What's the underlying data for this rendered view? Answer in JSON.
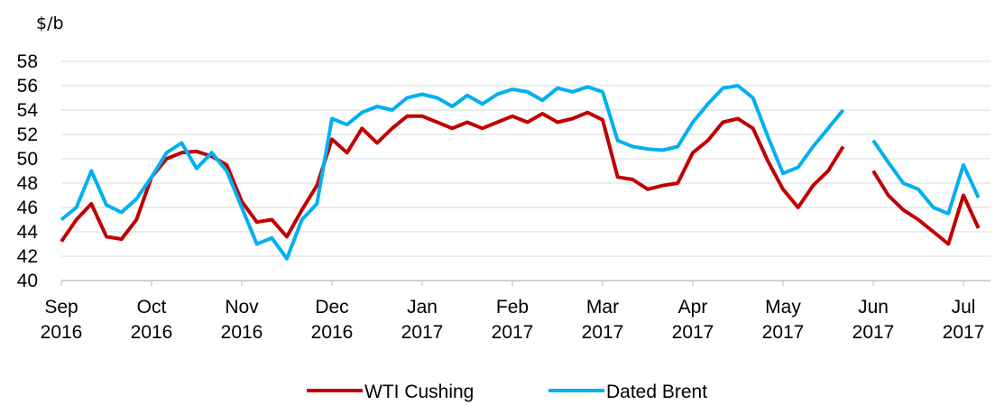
{
  "chart_data": {
    "type": "line",
    "y_axis_label": "$/b",
    "categories": [
      "Sep 2016",
      null,
      null,
      null,
      null,
      null,
      "Oct 2016",
      null,
      null,
      null,
      null,
      null,
      "Nov 2016",
      null,
      null,
      null,
      null,
      null,
      "Dec 2016",
      null,
      null,
      null,
      null,
      null,
      "Jan 2017",
      null,
      null,
      null,
      null,
      null,
      "Feb 2017",
      null,
      null,
      null,
      null,
      null,
      "Mar 2017",
      null,
      null,
      null,
      null,
      null,
      "Apr 2017",
      null,
      null,
      null,
      null,
      null,
      "May 2017",
      null,
      null,
      null,
      null,
      null,
      "Jun 2017",
      null,
      null,
      null,
      null,
      null,
      "Jul 2017",
      null
    ],
    "series": [
      {
        "name": "WTI Cushing",
        "color": "#c00000",
        "values": [
          43.2,
          45.0,
          46.3,
          43.6,
          43.4,
          45.0,
          48.5,
          50.0,
          50.5,
          50.6,
          50.2,
          49.5,
          46.5,
          44.8,
          45.0,
          43.6,
          45.8,
          47.8,
          51.6,
          50.5,
          52.5,
          51.3,
          52.5,
          53.5,
          53.5,
          53.0,
          52.5,
          53.0,
          52.5,
          53.0,
          53.5,
          53.0,
          53.7,
          53.0,
          53.3,
          53.8,
          53.2,
          48.5,
          48.3,
          47.5,
          47.8,
          48.0,
          50.5,
          51.5,
          53.0,
          53.3,
          52.5,
          49.8,
          47.5,
          46.0,
          47.8,
          49.0,
          51.0,
          null,
          49.0,
          47.0,
          45.8,
          45.0,
          44.0,
          43.0,
          47.0,
          44.3
        ]
      },
      {
        "name": "Dated Brent",
        "color": "#00b0f0",
        "values": [
          45.0,
          46.0,
          49.0,
          46.2,
          45.6,
          46.7,
          48.5,
          50.5,
          51.3,
          49.2,
          50.5,
          49.0,
          46.0,
          43.0,
          43.5,
          41.8,
          45.0,
          46.3,
          53.3,
          52.8,
          53.8,
          54.3,
          54.0,
          55.0,
          55.3,
          55.0,
          54.3,
          55.2,
          54.5,
          55.3,
          55.7,
          55.5,
          54.8,
          55.8,
          55.5,
          55.9,
          55.5,
          51.5,
          51.0,
          50.8,
          50.7,
          51.0,
          53.0,
          54.5,
          55.8,
          56.0,
          55.0,
          51.8,
          48.8,
          49.3,
          51.0,
          52.5,
          54.0,
          null,
          51.5,
          49.7,
          48.0,
          47.5,
          46.0,
          45.5,
          49.5,
          46.8
        ]
      }
    ],
    "ylim": [
      40,
      58
    ],
    "yticks": [
      40,
      42,
      44,
      46,
      48,
      50,
      52,
      54,
      56,
      58
    ],
    "grid": true,
    "legend": "bottom"
  }
}
